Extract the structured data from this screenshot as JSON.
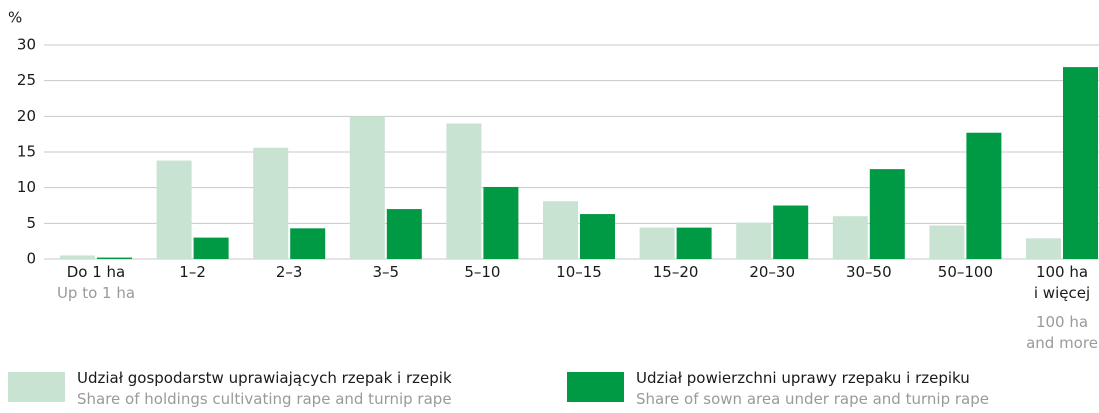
{
  "chart_data": {
    "type": "bar",
    "y_unit": "%",
    "categories": [
      "Do 1 ha",
      "1–2",
      "2–3",
      "3–5",
      "5–10",
      "10–15",
      "15–20",
      "20–30",
      "30–50",
      "50–100",
      "100 ha\ni więcej"
    ],
    "categories_en": [
      "Up to 1 ha",
      null,
      null,
      null,
      null,
      null,
      null,
      null,
      null,
      null,
      "100 ha\nand more"
    ],
    "series": [
      {
        "name": "Udział gospodarstw uprawiających rzepak i rzepik",
        "name_en": "Share of holdings cultivating rape and turnip rape",
        "color": "#c8e3d2",
        "values": [
          0.5,
          13.8,
          15.6,
          20,
          19,
          8.1,
          4.4,
          5.1,
          6,
          4.7,
          2.9
        ]
      },
      {
        "name": "Udział powierzchni uprawy rzepaku i rzepiku",
        "name_en": "Share of sown area under rape and turnip rape",
        "color": "#009a44",
        "values": [
          0.2,
          3.0,
          4.3,
          7.0,
          10.1,
          6.3,
          4.4,
          7.5,
          12.6,
          17.7,
          26.9
        ]
      }
    ],
    "ylim": [
      0,
      30
    ],
    "yticks": [
      0,
      5,
      10,
      15,
      20,
      25,
      30
    ],
    "grid": true
  }
}
